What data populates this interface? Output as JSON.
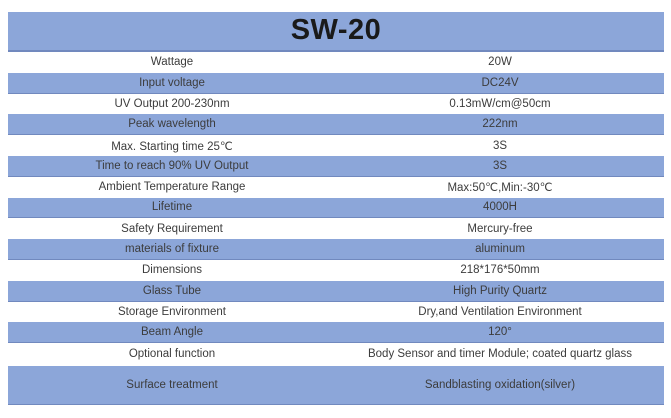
{
  "title": "SW-20",
  "colors": {
    "band": "#8CA6D9",
    "band_border": "#7189BE",
    "text": "#3C3C3C",
    "title_text": "#1A1A1A",
    "background": "#FFFFFF"
  },
  "table": {
    "rows": [
      {
        "label": "Wattage",
        "value": "20W"
      },
      {
        "label": "Input voltage",
        "value": "DC24V"
      },
      {
        "label": "UV Output 200-230nm",
        "value": "0.13mW/cm@50cm"
      },
      {
        "label": "Peak wavelength",
        "value": "222nm"
      },
      {
        "label": "Max. Starting time 25℃",
        "value": "3S"
      },
      {
        "label": "Time to reach 90% UV Output",
        "value": "3S"
      },
      {
        "label": "Ambient Temperature Range",
        "value": "Max:50℃,Min:-30℃"
      },
      {
        "label": "Lifetime",
        "value": "4000H"
      },
      {
        "label": "Safety Requirement",
        "value": "Mercury-free"
      },
      {
        "label": "materials of fixture",
        "value": "aluminum"
      },
      {
        "label": "Dimensions",
        "value": "218*176*50mm"
      },
      {
        "label": "Glass Tube",
        "value": "High Purity Quartz"
      },
      {
        "label": "Storage Environment",
        "value": "Dry,and Ventilation Environment"
      },
      {
        "label": "Beam Angle",
        "value": "120°"
      },
      {
        "label": "Optional function",
        "value": "Body Sensor and timer Module; coated quartz glass"
      }
    ],
    "footer_row": {
      "label": "Surface treatment",
      "value": "Sandblasting oxidation(silver)"
    }
  }
}
